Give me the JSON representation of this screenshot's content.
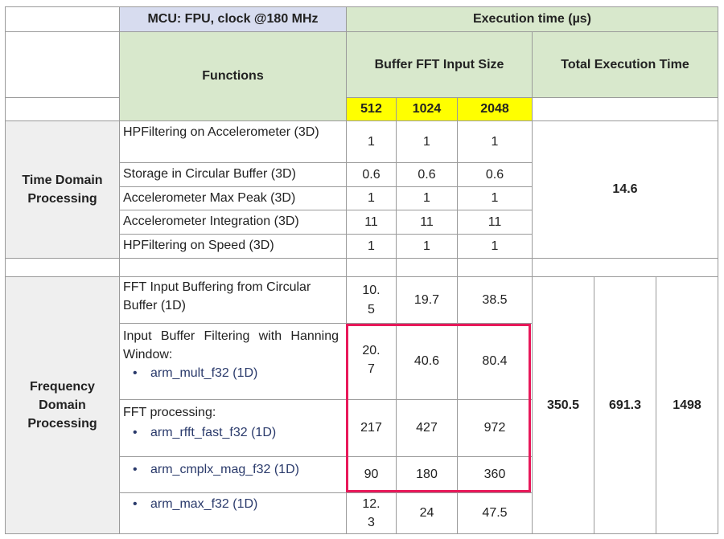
{
  "header": {
    "mcu": "MCU: FPU, clock @180 MHz",
    "execution_time": "Execution time (µs)",
    "functions": "Functions",
    "buffer_fft_input_size": "Buffer FFT Input Size",
    "total_execution_time": "Total Execution Time",
    "sizes": [
      "512",
      "1024",
      "2048"
    ]
  },
  "time_domain": {
    "label": "Time Domain Processing",
    "rows": [
      {
        "name": "HPFiltering on Accelerometer (3D)",
        "values": [
          "1",
          "1",
          "1"
        ]
      },
      {
        "name": "Storage in Circular Buffer (3D)",
        "values": [
          "0.6",
          "0.6",
          "0.6"
        ]
      },
      {
        "name": "Accelerometer Max Peak (3D)",
        "values": [
          "1",
          "1",
          "1"
        ]
      },
      {
        "name": "Accelerometer Integration (3D)",
        "values": [
          "11",
          "11",
          "11"
        ]
      },
      {
        "name": "HPFiltering on Speed (3D)",
        "values": [
          "1",
          "1",
          "1"
        ]
      }
    ],
    "total": "14.6"
  },
  "frequency_domain": {
    "label": "Frequency Domain Processing",
    "rows": [
      {
        "name": "FFT Input Buffering from Circular Buffer (1D)",
        "values": [
          "10.5",
          "19.7",
          "38.5"
        ]
      },
      {
        "name": "Input Buffer Filtering with Hanning Window:",
        "sub": "arm_mult_f32 (1D)",
        "values": [
          "20.7",
          "40.6",
          "80.4"
        ]
      },
      {
        "name": "FFT processing:",
        "sub": "arm_rfft_fast_f32 (1D)",
        "values": [
          "217",
          "427",
          "972"
        ]
      },
      {
        "name": "",
        "sub": "arm_cmplx_mag_f32 (1D)",
        "values": [
          "90",
          "180",
          "360"
        ]
      },
      {
        "name": "",
        "sub": "arm_max_f32 (1D)",
        "values": [
          "12.3",
          "24",
          "47.5"
        ]
      }
    ],
    "totals": [
      "350.5",
      "691.3",
      "1498"
    ]
  },
  "colors": {
    "header_green": "#d8e8cc",
    "header_blue": "#d7dcef",
    "size_yellow": "#ffff00",
    "row_label_grey": "#efefef",
    "highlight_border": "#e8195a"
  },
  "icons": {
    "bullet": "•"
  }
}
